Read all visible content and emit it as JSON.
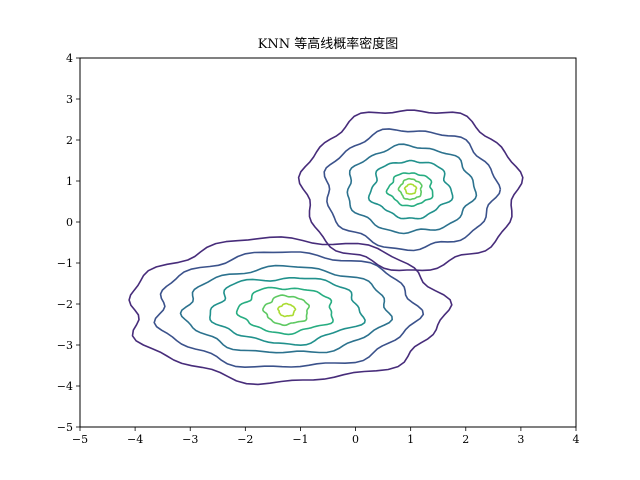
{
  "chart_data": {
    "type": "contour",
    "title": "KNN 等高线概率密度图",
    "xlabel": "",
    "ylabel": "",
    "xlim": [
      -5,
      4
    ],
    "ylim": [
      -5,
      4
    ],
    "x_ticks": [
      "−5",
      "−4",
      "−3",
      "−2",
      "−1",
      "0",
      "1",
      "2",
      "3",
      "4"
    ],
    "y_ticks": [
      "−5",
      "−4",
      "−3",
      "−2",
      "−1",
      "0",
      "1",
      "2",
      "3",
      "4"
    ],
    "grid": false,
    "legend": "none",
    "clusters": [
      {
        "center": [
          1.0,
          0.8
        ],
        "levels": [
          {
            "level": 1,
            "rx": 1.95,
            "ry": 1.95,
            "color": "#472c7a"
          },
          {
            "level": 2,
            "rx": 1.55,
            "ry": 1.45,
            "color": "#3b528b"
          },
          {
            "level": 3,
            "rx": 1.15,
            "ry": 1.05,
            "color": "#2c728e"
          },
          {
            "level": 4,
            "rx": 0.72,
            "ry": 0.7,
            "color": "#21918c"
          },
          {
            "level": 5,
            "rx": 0.4,
            "ry": 0.4,
            "color": "#27ad81"
          },
          {
            "level": 6,
            "rx": 0.2,
            "ry": 0.25,
            "color": "#5ec962"
          },
          {
            "level": 7,
            "rx": 0.1,
            "ry": 0.12,
            "color": "#aadc32"
          }
        ]
      },
      {
        "center": [
          -1.25,
          -2.15
        ],
        "levels": [
          {
            "level": 1,
            "rx": 2.85,
            "ry": 1.75,
            "color": "#472c7a"
          },
          {
            "level": 2,
            "rx": 2.35,
            "ry": 1.4,
            "color": "#3b528b"
          },
          {
            "level": 3,
            "rx": 1.85,
            "ry": 1.05,
            "color": "#2c728e"
          },
          {
            "level": 4,
            "rx": 1.35,
            "ry": 0.8,
            "color": "#21918c"
          },
          {
            "level": 5,
            "rx": 0.85,
            "ry": 0.55,
            "color": "#27ad81"
          },
          {
            "level": 6,
            "rx": 0.4,
            "ry": 0.35,
            "color": "#5ec962"
          },
          {
            "level": 7,
            "rx": 0.15,
            "ry": 0.15,
            "color": "#aadc32"
          }
        ]
      }
    ]
  }
}
